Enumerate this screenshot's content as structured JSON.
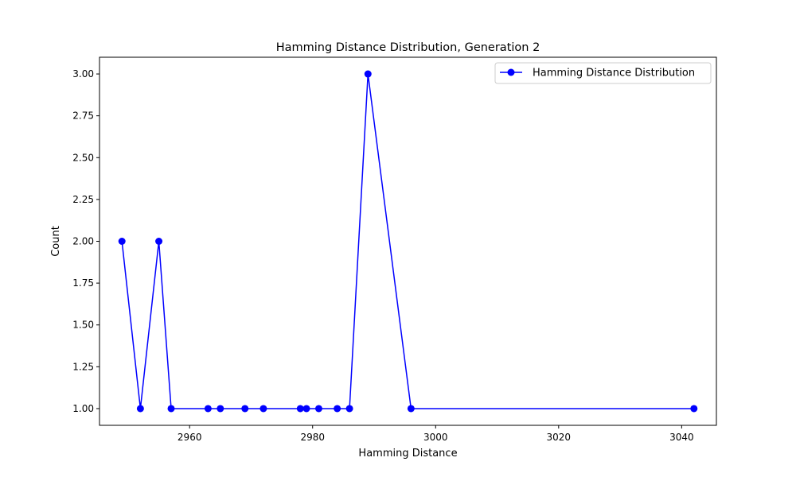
{
  "chart_data": {
    "type": "line",
    "title": "Hamming Distance Distribution, Generation 2",
    "xlabel": "Hamming Distance",
    "ylabel": "Count",
    "xlim": [
      2945.35,
      3045.65
    ],
    "ylim": [
      0.9,
      3.1
    ],
    "xticks": [
      2960,
      2980,
      3000,
      3020,
      3040
    ],
    "yticks": [
      1.0,
      1.25,
      1.5,
      1.75,
      2.0,
      2.25,
      2.5,
      2.75,
      3.0
    ],
    "xtick_labels": [
      "2960",
      "2980",
      "3000",
      "3020",
      "3040"
    ],
    "ytick_labels": [
      "1.00",
      "1.25",
      "1.50",
      "1.75",
      "2.00",
      "2.25",
      "2.50",
      "2.75",
      "3.00"
    ],
    "grid": false,
    "legend_position": "top-right",
    "series": [
      {
        "name": "Hamming Distance Distribution",
        "color": "#0000ff",
        "marker": "circle",
        "x": [
          2949,
          2952,
          2955,
          2957,
          2963,
          2965,
          2969,
          2972,
          2978,
          2979,
          2981,
          2984,
          2986,
          2989,
          2996,
          3042
        ],
        "y": [
          2,
          1,
          2,
          1,
          1,
          1,
          1,
          1,
          1,
          1,
          1,
          1,
          1,
          3,
          1,
          1
        ]
      }
    ]
  }
}
